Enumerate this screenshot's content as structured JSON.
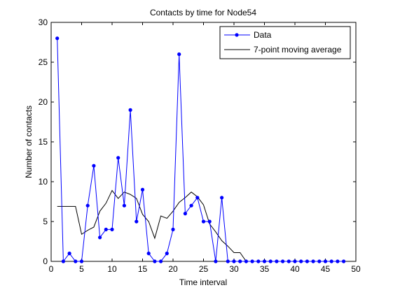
{
  "chart_data": {
    "type": "line",
    "title": "Contacts by time for Node54",
    "xlabel": "Time interval",
    "ylabel": "Number of contacts",
    "xlim": [
      0,
      50
    ],
    "ylim": [
      0,
      30
    ],
    "xticks": [
      0,
      5,
      10,
      15,
      20,
      25,
      30,
      35,
      40,
      45,
      50
    ],
    "yticks": [
      0,
      5,
      10,
      15,
      20,
      25,
      30
    ],
    "grid": false,
    "legend_position": "top-right",
    "series": [
      {
        "name": "Data",
        "color": "#0000ff",
        "marker": "dot",
        "x": [
          1,
          2,
          3,
          4,
          5,
          6,
          7,
          8,
          9,
          10,
          11,
          12,
          13,
          14,
          15,
          16,
          17,
          18,
          19,
          20,
          21,
          22,
          23,
          24,
          25,
          26,
          27,
          28,
          29,
          30,
          31,
          32,
          33,
          34,
          35,
          36,
          37,
          38,
          39,
          40,
          41,
          42,
          43,
          44,
          45,
          46,
          47,
          48
        ],
        "values": [
          28,
          0,
          1,
          0,
          0,
          7,
          12,
          3,
          4,
          4,
          13,
          7,
          19,
          5,
          9,
          1,
          0,
          0,
          1,
          4,
          26,
          6,
          7,
          8,
          5,
          5,
          0,
          8,
          0,
          0,
          0,
          0,
          0,
          0,
          0,
          0,
          0,
          0,
          0,
          0,
          0,
          0,
          0,
          0,
          0,
          0,
          0,
          0
        ]
      },
      {
        "name": "7-point moving average",
        "color": "#000000",
        "marker": "none",
        "x": [
          1,
          2,
          3,
          4,
          5,
          6,
          7,
          8,
          9,
          10,
          11,
          12,
          13,
          14,
          15,
          16,
          17,
          18,
          19,
          20,
          21,
          22,
          23,
          24,
          25,
          26,
          27,
          28,
          29,
          30,
          31,
          32,
          33,
          34,
          35,
          36,
          37,
          38,
          39,
          40,
          41,
          42,
          43,
          44,
          45,
          46,
          47,
          48
        ],
        "values": [
          6.9,
          6.9,
          6.9,
          6.9,
          3.4,
          3.9,
          4.3,
          6.3,
          7.3,
          8.9,
          7.9,
          8.7,
          8.4,
          7.9,
          5.9,
          5.0,
          2.9,
          5.7,
          5.4,
          6.3,
          7.4,
          8.0,
          8.7,
          8.1,
          7.1,
          4.7,
          3.7,
          2.6,
          1.9,
          1.1,
          1.1,
          0,
          0,
          0,
          0,
          0,
          0,
          0,
          0,
          0,
          0,
          0,
          0,
          0,
          0,
          0,
          0,
          0
        ]
      }
    ]
  }
}
